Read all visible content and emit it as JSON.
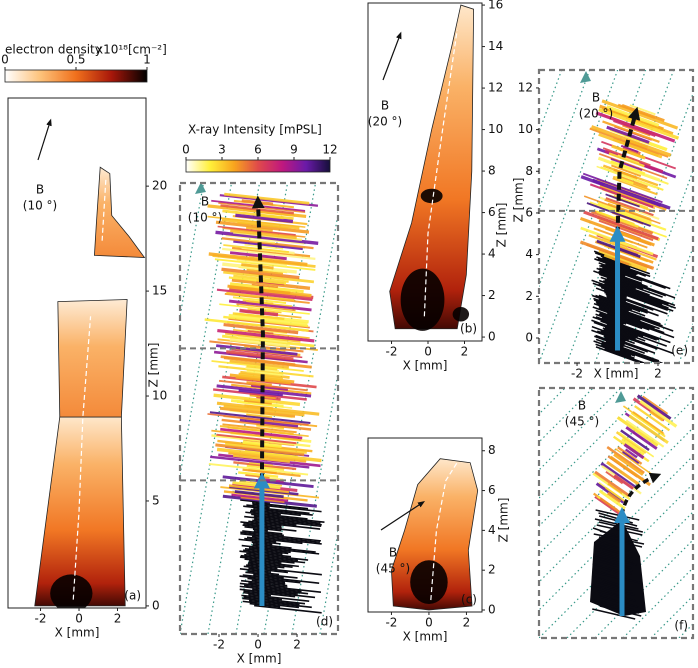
{
  "chart_data": [
    {
      "type": "colorbar",
      "label": "electron density",
      "unit_label": "x10¹⁸[cm⁻²]",
      "xlim": [
        0,
        1
      ],
      "xticks": [
        0,
        0.5,
        1
      ],
      "colors": [
        "#ffffff",
        "#fdc27a",
        "#f0701c",
        "#a8170a",
        "#000000"
      ]
    },
    {
      "type": "colorbar",
      "label": "X-ray Intensity [mPSL]",
      "xlim": [
        0,
        12
      ],
      "xticks": [
        0,
        3,
        6,
        9,
        12
      ],
      "colors": [
        "#ffffff",
        "#fff03a",
        "#f8a51e",
        "#e04a4a",
        "#c0187e",
        "#6a1aa8",
        "#150f3a"
      ]
    },
    {
      "type": "heatmap",
      "panel_label": "(a)",
      "annotation": [
        "B",
        "(10 °)"
      ],
      "xlabel": "X [mm]",
      "ylabel": "Z [mm]",
      "xlim": [
        -3.69,
        3.48
      ],
      "ylim": [
        -0.1,
        24.2
      ],
      "xticks": [
        -2,
        0,
        2
      ],
      "yticks": [
        0,
        5,
        10,
        15,
        20
      ]
    },
    {
      "type": "streaks",
      "panel_label": "(d)",
      "annotation": [
        "B",
        "(10 °)"
      ],
      "xlabel": "X [mm]",
      "xlim": [
        -4,
        4.1
      ],
      "ylim": [
        -1.34,
        20.2
      ],
      "xticks": [
        -2,
        0,
        2
      ]
    },
    {
      "type": "heatmap",
      "panel_label": "(b)",
      "annotation": [
        "B",
        "(20 °)"
      ],
      "xlabel": "X [mm]",
      "ylabel": "Z [mm]",
      "xlim": [
        -3.29,
        2.96
      ],
      "ylim": [
        -0.19,
        16.1
      ],
      "xticks": [
        -2,
        0,
        2
      ],
      "yticks": [
        0,
        2,
        4,
        6,
        8,
        10,
        12,
        14,
        16
      ]
    },
    {
      "type": "streaks",
      "panel_label": "(e)",
      "annotation": [
        "B",
        "(20 °)"
      ],
      "xlabel": "X [mm]",
      "ylabel": "Z [mm]",
      "xlim": [
        -3.88,
        3.73
      ],
      "ylim": [
        -1.2,
        12.86
      ],
      "xticks": [
        -2,
        2
      ],
      "yticks": [
        0,
        2,
        4,
        6,
        8,
        10,
        12
      ]
    },
    {
      "type": "heatmap",
      "panel_label": "(c)",
      "annotation": [
        "B",
        "(45 °)"
      ],
      "xlabel": "X [mm]",
      "ylabel": "Z [mm]",
      "xlim": [
        -3.25,
        2.83
      ],
      "ylim": [
        -0.1,
        8.64
      ],
      "xticks": [
        -2,
        0,
        2
      ],
      "yticks": [
        0,
        2,
        4,
        6,
        8
      ]
    },
    {
      "type": "streaks",
      "panel_label": "(f)",
      "annotation": [
        "B",
        "(45 °)"
      ]
    }
  ]
}
